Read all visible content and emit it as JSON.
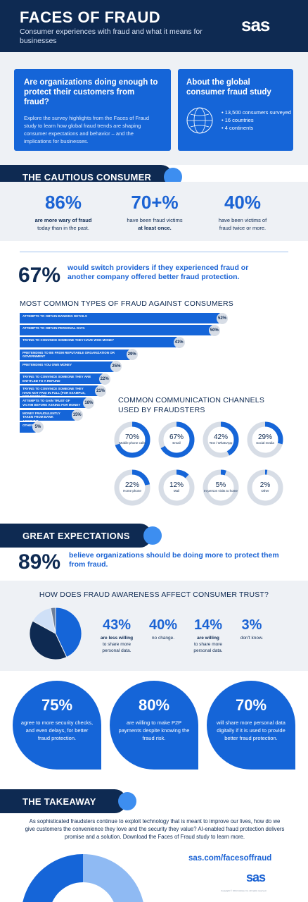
{
  "header": {
    "title": "FACES OF FRAUD",
    "subtitle": "Consumer experiences with fraud and what it means for businesses",
    "logo": "sas"
  },
  "intro": {
    "left_title": "Are organizations doing enough to protect their customers from fraud?",
    "left_body": "Explore the survey highlights from the Faces of Fraud study to learn how global fraud trends are shaping consumer expectations and behavior – and the implications for businesses.",
    "right_title": "About the global consumer fraud study",
    "right_items": [
      "13,500 consumers surveyed",
      "16 countries",
      "4 continents"
    ],
    "icon": "globe-icon"
  },
  "cautious": {
    "banner": "THE CAUTIOUS CONSUMER",
    "stats": [
      {
        "value": "86%",
        "line1": "are more wary of fraud",
        "line2": "today than in the past."
      },
      {
        "value": "70+%",
        "line1": "have been fraud victims",
        "line2": "at least once."
      },
      {
        "value": "40%",
        "line1": "have been victims of",
        "line2": "fraud twice or more."
      }
    ]
  },
  "switch": {
    "value": "67%",
    "text": "would switch providers if they experienced fraud or another company offered better fraud protection."
  },
  "fraud_types": {
    "title": "MOST COMMON TYPES OF FRAUD AGAINST CONSUMERS"
  },
  "channels": {
    "title": "COMMON COMMUNICATION CHANNELS USED BY FRAUDSTERS"
  },
  "great": {
    "banner": "GREAT EXPECTATIONS",
    "value": "89%",
    "text": "believe organizations should be doing more to protect them from fraud."
  },
  "trust": {
    "title": "HOW DOES FRAUD AWARENESS AFFECT CONSUMER TRUST?",
    "stats": [
      {
        "value": "43%",
        "line1": "are less willing",
        "line2": "to share more",
        "line3": "personal data."
      },
      {
        "value": "40%",
        "line1": "no change.",
        "line2": "",
        "line3": ""
      },
      {
        "value": "14%",
        "line1": "are willing",
        "line2": "to share more",
        "line3": "personal data."
      },
      {
        "value": "3%",
        "line1": "don't know.",
        "line2": "",
        "line3": ""
      }
    ]
  },
  "leaves": [
    {
      "value": "75%",
      "text": "agree to more security checks, and even delays, for better fraud protection."
    },
    {
      "value": "80%",
      "text": "are willing to make P2P payments despite knowing the fraud risk."
    },
    {
      "value": "70%",
      "text": "will share more personal data digitally if it is used to provide better fraud protection."
    }
  ],
  "takeaway": {
    "banner": "THE TAKEAWAY",
    "text": "As sophisticated fraudsters continue to exploit technology that is meant to improve our lives, how do we give customers the convenience they love and the security they value? AI-enabled fraud protection delivers promise and a solution. Download the Faces of Fraud study to learn more.",
    "url": "sas.com/facesoffraud",
    "logo": "sas",
    "fineprint": "Copyright © SAS Institute Inc. All rights reserved."
  },
  "colors": {
    "navy": "#0e2a52",
    "blue": "#1565d8",
    "light_blue": "#3d8ef0",
    "grey": "#d7dde6"
  },
  "chart_data": [
    {
      "type": "bar",
      "title": "MOST COMMON TYPES OF FRAUD AGAINST CONSUMERS",
      "categories": [
        "ATTEMPTS TO OBTAIN BANKING DETAILS",
        "ATTEMPTS TO OBTAIN PERSONAL DATA",
        "TRYING TO CONVINCE SOMEONE THEY HAVE WON MONEY",
        "PRETENDING TO BE FROM REPUTABLE ORGANIZATION OR GOVERNMENT",
        "PRETENDING YOU OWE MONEY",
        "TRYING TO CONVINCE SOMEONE THEY ARE ENTITLED TO A REFUND",
        "TRYING TO CONVINCE SOMEONE THEY HAVE NOT PAID IN FULL (FOR EXAMPLE, FOR POSTAGE)",
        "ATTEMPTS TO GAIN TRUST OF VICTIM BEFORE ASKING FOR MONEY",
        "MONEY FRAUDULENTLY TAKEN FROM BANK ACCOUNT",
        "OTHER"
      ],
      "values": [
        52,
        50,
        41,
        29,
        25,
        22,
        21,
        18,
        15,
        5
      ],
      "labels": [
        "52%",
        "50%",
        "41%",
        "29%",
        "25%",
        "22%",
        "21%",
        "18%",
        "15%",
        "5%"
      ]
    },
    {
      "type": "pie",
      "title": "COMMON COMMUNICATION CHANNELS USED BY FRAUDSTERS",
      "categories": [
        "Mobile phone calls",
        "Email",
        "Text / WhatsApp",
        "Social media",
        "Home phone",
        "Mail",
        "In-person visits to home",
        "Other"
      ],
      "values": [
        70,
        67,
        42,
        29,
        22,
        12,
        5,
        2
      ],
      "labels": [
        "70%",
        "67%",
        "42%",
        "29%",
        "22%",
        "12%",
        "5%",
        "2%"
      ]
    },
    {
      "type": "pie",
      "title": "HOW DOES FRAUD AWARENESS AFFECT CONSUMER TRUST?",
      "categories": [
        "are less willing to share more personal data.",
        "no change.",
        "are willing to share more personal data.",
        "don't know."
      ],
      "values": [
        43,
        40,
        14,
        3
      ],
      "colors": [
        "#1565d8",
        "#0e2a52",
        "#cfe0f7",
        "#6e7f99"
      ]
    }
  ]
}
